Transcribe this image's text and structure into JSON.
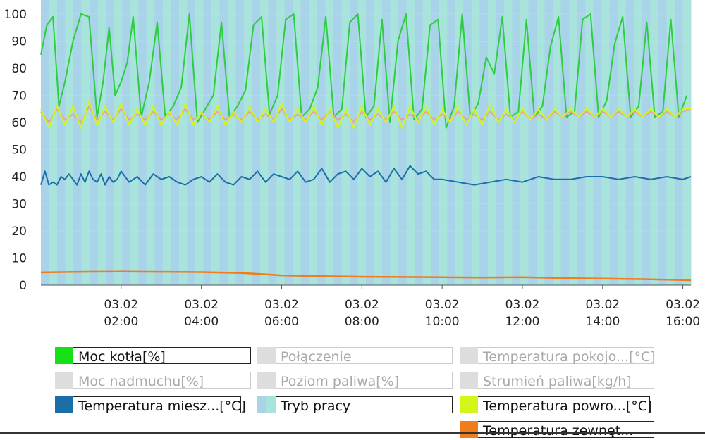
{
  "chart_data": {
    "type": "line",
    "ylim": [
      0,
      100
    ],
    "yticks": [
      "0",
      "10",
      "20",
      "30",
      "40",
      "50",
      "60",
      "70",
      "80",
      "90",
      "100"
    ],
    "xlim_hours": [
      0.0,
      16.2
    ],
    "xticks": [
      {
        "date": "03.02",
        "time": "02:00",
        "hour": 2
      },
      {
        "date": "03.02",
        "time": "04:00",
        "hour": 4
      },
      {
        "date": "03.02",
        "time": "06:00",
        "hour": 6
      },
      {
        "date": "03.02",
        "time": "08:00",
        "hour": 8
      },
      {
        "date": "03.02",
        "time": "10:00",
        "hour": 10
      },
      {
        "date": "03.02",
        "time": "12:00",
        "hour": 12
      },
      {
        "date": "03.02",
        "time": "14:00",
        "hour": 14
      },
      {
        "date": "03.02",
        "time": "16:00",
        "hour": 16
      }
    ],
    "background_bands": {
      "colors": [
        "#a8d3e8",
        "#a8e4dc"
      ],
      "count": 80
    },
    "series": [
      {
        "name": "Moc kotła[%]",
        "color": "#2ecc40",
        "x": [
          0.0,
          0.15,
          0.3,
          0.45,
          0.6,
          0.8,
          1.0,
          1.2,
          1.4,
          1.55,
          1.7,
          1.85,
          2.0,
          2.15,
          2.3,
          2.5,
          2.7,
          2.9,
          3.1,
          3.3,
          3.5,
          3.7,
          3.9,
          4.1,
          4.3,
          4.5,
          4.7,
          4.9,
          5.1,
          5.3,
          5.5,
          5.7,
          5.9,
          6.1,
          6.3,
          6.5,
          6.7,
          6.9,
          7.1,
          7.3,
          7.5,
          7.7,
          7.9,
          8.1,
          8.3,
          8.5,
          8.7,
          8.9,
          9.1,
          9.3,
          9.5,
          9.7,
          9.9,
          10.1,
          10.3,
          10.5,
          10.7,
          10.9,
          11.1,
          11.3,
          11.5,
          11.7,
          11.9,
          12.1,
          12.3,
          12.5,
          12.7,
          12.9,
          13.1,
          13.3,
          13.5,
          13.7,
          13.9,
          14.1,
          14.3,
          14.5,
          14.7,
          14.9,
          15.1,
          15.3,
          15.5,
          15.7,
          15.9,
          16.1
        ],
        "y": [
          85,
          96,
          99,
          66,
          75,
          90,
          100,
          99,
          62,
          75,
          95,
          70,
          75,
          82,
          99,
          62,
          75,
          97,
          62,
          66,
          73,
          100,
          60,
          65,
          70,
          97,
          62,
          66,
          72,
          96,
          99,
          63,
          70,
          98,
          100,
          62,
          65,
          73,
          99,
          62,
          65,
          97,
          100,
          62,
          66,
          98,
          60,
          90,
          100,
          61,
          65,
          96,
          98,
          58,
          66,
          100,
          62,
          67,
          84,
          78,
          99,
          62,
          64,
          98,
          62,
          66,
          88,
          99,
          62,
          64,
          98,
          100,
          62,
          68,
          89,
          99,
          62,
          66,
          97,
          62,
          64,
          98,
          62,
          70
        ]
      },
      {
        "name": "Temperatura pokojo...[°C]",
        "color": "#e8a0a0",
        "x": [
          0.0,
          0.2,
          0.4,
          0.6,
          0.8,
          1.0,
          1.2,
          1.4,
          1.6,
          1.8,
          2.0,
          2.2,
          2.4,
          2.6,
          2.8,
          3.0,
          3.2,
          3.4,
          3.6,
          3.8,
          4.0,
          4.2,
          4.4,
          4.6,
          4.8,
          5.0,
          5.2,
          5.4,
          5.6,
          5.8,
          6.0,
          6.2,
          6.4,
          6.6,
          6.8,
          7.0,
          7.2,
          7.4,
          7.6,
          7.8,
          8.0,
          8.2,
          8.4,
          8.6,
          8.8,
          9.0,
          9.2,
          9.4,
          9.6,
          9.8,
          10.0,
          10.2,
          10.4,
          10.6,
          10.8,
          11.0,
          11.2,
          11.4,
          11.6,
          11.8,
          12.0,
          12.2,
          12.4,
          12.6,
          12.8,
          13.0,
          13.2,
          13.4,
          13.6,
          13.8,
          14.0,
          14.2,
          14.4,
          14.6,
          14.8,
          15.0,
          15.2,
          15.4,
          15.6,
          15.8,
          16.0,
          16.2
        ],
        "y": [
          64,
          60,
          65,
          61,
          63,
          60,
          66,
          61,
          64,
          61,
          65,
          61,
          63,
          61,
          64,
          61,
          63,
          61,
          65,
          61,
          63,
          61,
          64,
          61,
          63,
          61,
          64,
          61,
          63,
          61,
          65,
          61,
          63,
          61,
          64,
          61,
          64,
          61,
          63,
          60,
          64,
          61,
          63,
          61,
          64,
          61,
          63,
          61,
          64,
          61,
          63,
          61,
          64,
          61,
          63,
          61,
          64,
          61,
          63,
          61,
          64,
          61,
          63,
          61,
          64,
          62,
          64,
          62,
          64,
          62,
          64,
          62,
          64,
          62,
          64,
          62,
          64,
          62,
          64,
          62,
          64,
          65
        ]
      },
      {
        "name": "Temperatura powro...[°C]",
        "color": "#d4f51a",
        "x": [
          0.0,
          0.2,
          0.4,
          0.6,
          0.8,
          1.0,
          1.2,
          1.4,
          1.6,
          1.8,
          2.0,
          2.2,
          2.4,
          2.6,
          2.8,
          3.0,
          3.2,
          3.4,
          3.6,
          3.8,
          4.0,
          4.2,
          4.4,
          4.6,
          4.8,
          5.0,
          5.2,
          5.4,
          5.6,
          5.8,
          6.0,
          6.2,
          6.4,
          6.6,
          6.8,
          7.0,
          7.2,
          7.4,
          7.6,
          7.8,
          8.0,
          8.2,
          8.4,
          8.6,
          8.8,
          9.0,
          9.2,
          9.4,
          9.6,
          9.8,
          10.0,
          10.2,
          10.4,
          10.6,
          10.8,
          11.0,
          11.2,
          11.4,
          11.6,
          11.8,
          12.0,
          12.2,
          12.4,
          12.6,
          12.8,
          13.0,
          13.2,
          13.4,
          13.6,
          13.8,
          14.0,
          14.2,
          14.4,
          14.6,
          14.8,
          15.0,
          15.2,
          15.4,
          15.6,
          15.8,
          16.0,
          16.2
        ],
        "y": [
          65,
          58,
          66,
          59,
          66,
          58,
          68,
          59,
          66,
          60,
          67,
          59,
          65,
          59,
          66,
          59,
          64,
          59,
          67,
          59,
          64,
          60,
          66,
          59,
          64,
          60,
          66,
          60,
          65,
          60,
          67,
          60,
          65,
          60,
          66,
          59,
          65,
          58,
          65,
          58,
          66,
          59,
          65,
          60,
          66,
          58,
          66,
          60,
          66,
          59,
          65,
          60,
          66,
          59,
          65,
          59,
          67,
          60,
          65,
          60,
          65,
          61,
          65,
          61,
          65,
          62,
          65,
          62,
          65,
          62,
          65,
          62,
          65,
          62,
          65,
          62,
          65,
          62,
          65,
          62,
          65,
          65
        ]
      },
      {
        "name": "Temperatura miesz...[°C]",
        "color": "#1a6fa8",
        "x": [
          0.0,
          0.1,
          0.2,
          0.3,
          0.4,
          0.5,
          0.6,
          0.7,
          0.8,
          0.9,
          1.0,
          1.1,
          1.2,
          1.3,
          1.4,
          1.5,
          1.6,
          1.7,
          1.8,
          1.9,
          2.0,
          2.2,
          2.4,
          2.6,
          2.8,
          3.0,
          3.2,
          3.4,
          3.6,
          3.8,
          4.0,
          4.2,
          4.4,
          4.6,
          4.8,
          5.0,
          5.2,
          5.4,
          5.6,
          5.8,
          6.0,
          6.2,
          6.4,
          6.6,
          6.8,
          7.0,
          7.2,
          7.4,
          7.6,
          7.8,
          8.0,
          8.2,
          8.4,
          8.6,
          8.8,
          9.0,
          9.2,
          9.4,
          9.6,
          9.8,
          10.0,
          10.4,
          10.8,
          11.2,
          11.6,
          12.0,
          12.4,
          12.8,
          13.2,
          13.6,
          14.0,
          14.4,
          14.8,
          15.2,
          15.6,
          16.0,
          16.2
        ],
        "y": [
          37,
          42,
          37,
          38,
          37,
          40,
          39,
          41,
          39,
          37,
          41,
          38,
          42,
          39,
          38,
          41,
          37,
          40,
          38,
          39,
          42,
          38,
          40,
          37,
          41,
          39,
          40,
          38,
          37,
          39,
          40,
          38,
          41,
          38,
          37,
          40,
          39,
          42,
          38,
          41,
          40,
          39,
          42,
          38,
          39,
          43,
          38,
          41,
          42,
          39,
          43,
          40,
          42,
          38,
          43,
          39,
          44,
          41,
          42,
          39,
          39,
          38,
          37,
          38,
          39,
          38,
          40,
          39,
          39,
          40,
          40,
          39,
          40,
          39,
          40,
          39,
          40
        ]
      },
      {
        "name": "Temperatura zewnęt...",
        "color": "#f07c1a",
        "x": [
          0.0,
          1.0,
          2.0,
          3.0,
          4.0,
          5.0,
          6.0,
          7.0,
          8.0,
          9.0,
          10.0,
          11.0,
          12.0,
          13.0,
          14.0,
          15.0,
          16.0,
          16.2
        ],
        "y": [
          4.7,
          4.9,
          5.0,
          4.9,
          4.8,
          4.5,
          3.6,
          3.3,
          3.1,
          3.0,
          2.9,
          2.8,
          2.9,
          2.6,
          2.4,
          2.2,
          1.9,
          1.8
        ]
      }
    ]
  },
  "legend": [
    {
      "label": "Moc kotła[%]",
      "color": "#16e016",
      "active": true
    },
    {
      "label": "Połączenie",
      "color": "#dddddd",
      "active": false
    },
    {
      "label": "Temperatura pokojo...[°C]",
      "color": "#dddddd",
      "active": false
    },
    {
      "label": "Moc nadmuchu[%]",
      "color": "#dddddd",
      "active": false
    },
    {
      "label": "Poziom paliwa[%]",
      "color": "#dddddd",
      "active": false
    },
    {
      "label": "Strumień paliwa[kg/h]",
      "color": "#dddddd",
      "active": false
    },
    {
      "label": "Temperatura miesz...[°C]",
      "color": "#1a6fa8",
      "active": true
    },
    {
      "label": "Tryb pracy",
      "color": "#a8d3e8",
      "active": true
    },
    {
      "label": "Temperatura powro...[°C]",
      "color": "#d4f51a",
      "active": true
    },
    {
      "label": "Temperatura zewnęt...",
      "color": "#f07c1a",
      "active": true
    }
  ]
}
